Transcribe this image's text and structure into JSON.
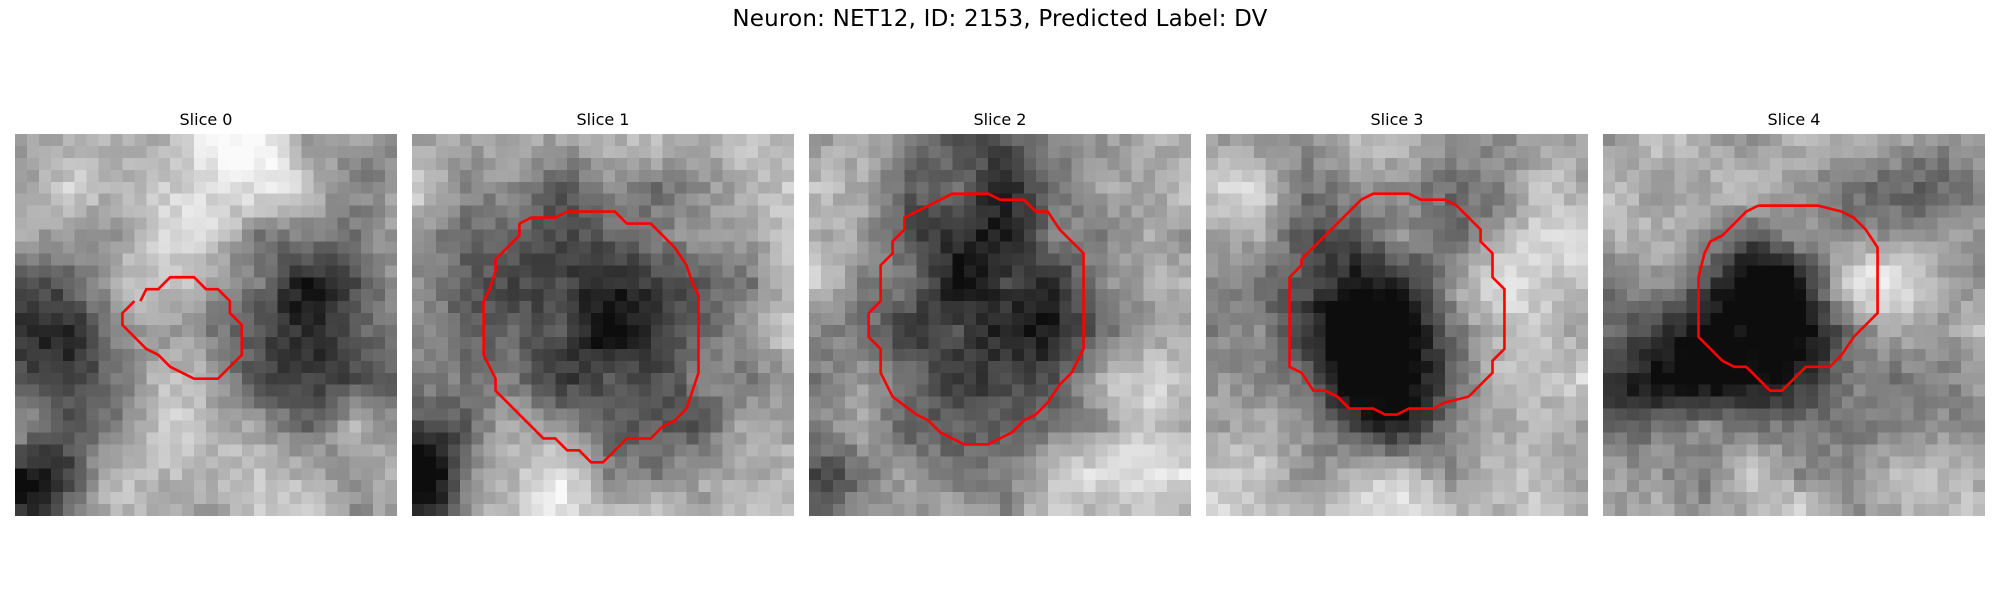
{
  "figure": {
    "title": "Neuron: NET12, ID: 2153, Predicted Label: DV"
  },
  "slices": [
    {
      "label": "Slice 0",
      "contour_color": "#ff0000"
    },
    {
      "label": "Slice 1",
      "contour_color": "#ff0000"
    },
    {
      "label": "Slice 2",
      "contour_color": "#ff0000"
    },
    {
      "label": "Slice 3",
      "contour_color": "#ff0000"
    },
    {
      "label": "Slice 4",
      "contour_color": "#ff0000"
    }
  ]
}
